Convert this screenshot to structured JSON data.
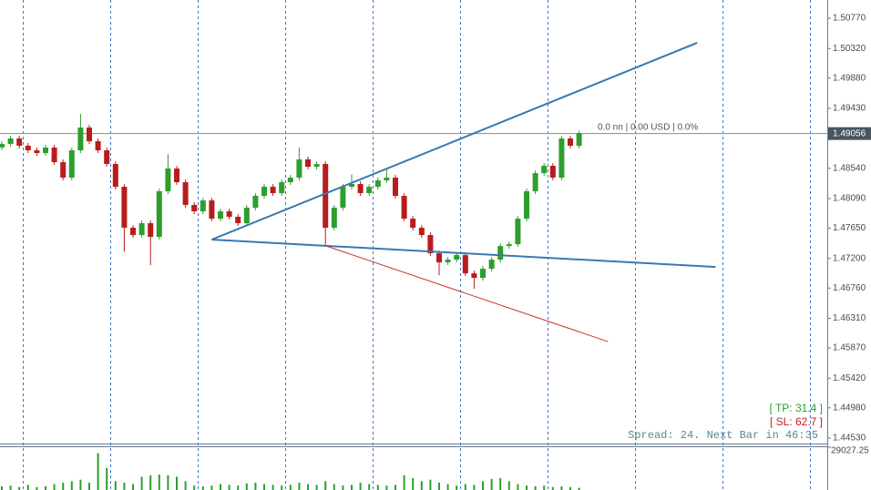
{
  "chart_data": {
    "type": "candlestick",
    "ylim": [
      1.44449,
      1.51041
    ],
    "yticks": [
      {
        "value": 1.5077,
        "label": "1.50770"
      },
      {
        "value": 1.5032,
        "label": "1.50320"
      },
      {
        "value": 1.4988,
        "label": "1.49880"
      },
      {
        "value": 1.4943,
        "label": "1.49430"
      },
      {
        "value": 1.4854,
        "label": "1.48540"
      },
      {
        "value": 1.4809,
        "label": "1.48090"
      },
      {
        "value": 1.4765,
        "label": "1.47650"
      },
      {
        "value": 1.472,
        "label": "1.47200"
      },
      {
        "value": 1.4676,
        "label": "1.46760"
      },
      {
        "value": 1.4631,
        "label": "1.46310"
      },
      {
        "value": 1.4587,
        "label": "1.45870"
      },
      {
        "value": 1.4542,
        "label": "1.45420"
      },
      {
        "value": 1.4498,
        "label": "1.44980"
      },
      {
        "value": 1.4453,
        "label": "1.44530"
      }
    ],
    "grid": true,
    "up_color": "#2e9e2e",
    "down_color": "#b81c1c",
    "open": [
      1.4885,
      1.48902,
      1.48983,
      1.48875,
      1.48807,
      1.48766,
      1.48848,
      1.48631,
      1.48401,
      1.48807,
      1.49145,
      1.48942,
      1.48807,
      1.48604,
      1.48265,
      1.47656,
      1.47548,
      1.47724,
      1.47521,
      1.48198,
      1.48536,
      1.48333,
      1.47995,
      1.479,
      1.48062,
      1.47791,
      1.479,
      1.47819,
      1.47724,
      1.47954,
      1.4813,
      1.48265,
      1.48171,
      1.48333,
      1.48401,
      1.48672,
      1.48563,
      1.48604,
      1.47656,
      1.47954,
      1.48265,
      1.48306,
      1.48171,
      1.48265,
      1.4836,
      1.48401,
      1.4813,
      1.47791,
      1.47656,
      1.47548,
      1.47277,
      1.47142,
      1.47182,
      1.4725,
      1.46979,
      1.46911,
      1.47047,
      1.47182,
      1.47385,
      1.47412,
      1.47791,
      1.48198,
      1.48468,
      1.48577,
      1.48401,
      1.48983,
      1.48875
    ],
    "high": [
      1.48942,
      1.49023,
      1.49023,
      1.48915,
      1.48847,
      1.48888,
      1.48888,
      1.48671,
      1.48847,
      1.4935,
      1.49185,
      1.48982,
      1.48847,
      1.48644,
      1.48305,
      1.47696,
      1.47764,
      1.47764,
      1.48238,
      1.4875,
      1.48576,
      1.48373,
      1.48035,
      1.48102,
      1.48102,
      1.4794,
      1.4794,
      1.47859,
      1.47994,
      1.4817,
      1.48305,
      1.48305,
      1.48373,
      1.48441,
      1.4885,
      1.48712,
      1.48644,
      1.48644,
      1.47994,
      1.48305,
      1.4845,
      1.48346,
      1.48305,
      1.484,
      1.4852,
      1.48441,
      1.4817,
      1.47831,
      1.47696,
      1.47588,
      1.47317,
      1.47222,
      1.4729,
      1.4729,
      1.47019,
      1.47087,
      1.47222,
      1.47425,
      1.47452,
      1.47831,
      1.48238,
      1.48508,
      1.48617,
      1.48617,
      1.49023,
      1.49023,
      1.491
    ],
    "low": [
      1.4881,
      1.48862,
      1.48835,
      1.48767,
      1.48726,
      1.48726,
      1.48591,
      1.48361,
      1.48361,
      1.48767,
      1.48902,
      1.48767,
      1.48564,
      1.48225,
      1.473,
      1.47508,
      1.47508,
      1.471,
      1.47481,
      1.48158,
      1.48293,
      1.47955,
      1.4786,
      1.4786,
      1.47751,
      1.47751,
      1.47779,
      1.47684,
      1.47684,
      1.47914,
      1.4809,
      1.48131,
      1.48131,
      1.48293,
      1.48361,
      1.48523,
      1.48523,
      1.474,
      1.47616,
      1.47914,
      1.48225,
      1.48131,
      1.48131,
      1.48225,
      1.4832,
      1.4809,
      1.47751,
      1.47616,
      1.47508,
      1.47237,
      1.4695,
      1.47102,
      1.47142,
      1.46939,
      1.4675,
      1.46871,
      1.47007,
      1.47142,
      1.47345,
      1.47372,
      1.47751,
      1.48158,
      1.48428,
      1.48361,
      1.48361,
      1.48835,
      1.48835
    ],
    "close": [
      1.48902,
      1.48983,
      1.48875,
      1.48807,
      1.48766,
      1.48848,
      1.48631,
      1.48401,
      1.48807,
      1.49145,
      1.48942,
      1.48807,
      1.48604,
      1.48265,
      1.47656,
      1.47548,
      1.47724,
      1.47521,
      1.48198,
      1.48536,
      1.48333,
      1.47995,
      1.479,
      1.48062,
      1.47791,
      1.479,
      1.47819,
      1.47724,
      1.47954,
      1.4813,
      1.48265,
      1.48171,
      1.48333,
      1.48401,
      1.48672,
      1.48563,
      1.48604,
      1.47656,
      1.47954,
      1.48265,
      1.48306,
      1.48171,
      1.48265,
      1.4836,
      1.48401,
      1.4813,
      1.47791,
      1.47656,
      1.47548,
      1.47277,
      1.47142,
      1.47182,
      1.4725,
      1.46979,
      1.46911,
      1.47047,
      1.47182,
      1.47385,
      1.47412,
      1.47791,
      1.48198,
      1.48468,
      1.48577,
      1.48401,
      1.48983,
      1.48875,
      1.49064
    ],
    "volume": [
      2500,
      3000,
      2000,
      3500,
      2000,
      2500,
      4000,
      5000,
      6000,
      7000,
      5000,
      25000,
      15000,
      6000,
      5000,
      4000,
      9000,
      10000,
      10500,
      10000,
      9000,
      6000,
      3000,
      2500,
      3000,
      4000,
      3500,
      3000,
      4500,
      5000,
      4000,
      3500,
      3000,
      3500,
      5000,
      4000,
      3500,
      6000,
      4000,
      3000,
      3500,
      5000,
      4000,
      3500,
      3000,
      3500,
      10000,
      8000,
      6000,
      7000,
      5000,
      4000,
      3000,
      4000,
      3500,
      6000,
      7500,
      8000,
      6000,
      4000,
      3000,
      2500,
      3000,
      2000,
      2500,
      2000,
      1500
    ],
    "volume_color": "#2e9e2e",
    "volume_lim": [
      0,
      29027.25
    ],
    "volume_ticks": [
      29027.25
    ],
    "lines": [
      {
        "from": [
          24,
          1.4748
        ],
        "to": [
          79.5,
          1.50405
        ],
        "color": "#3a78b0"
      },
      {
        "from": [
          24,
          1.4748
        ],
        "to": [
          81.6,
          1.47074
        ],
        "color": "#3a78b0"
      },
      {
        "from": [
          37.1,
          1.47385
        ],
        "to": [
          69.3,
          1.45964
        ],
        "color": "#c83232"
      }
    ],
    "price_line": {
      "value": 1.49056,
      "info": "0.0 nn | 0.00 USD | 0.0%"
    },
    "tp": "[ TP: 31.4 ]",
    "sl": "[ SL: 62.7 ]",
    "status": "Spread: 24. Next Bar in 46:35"
  }
}
